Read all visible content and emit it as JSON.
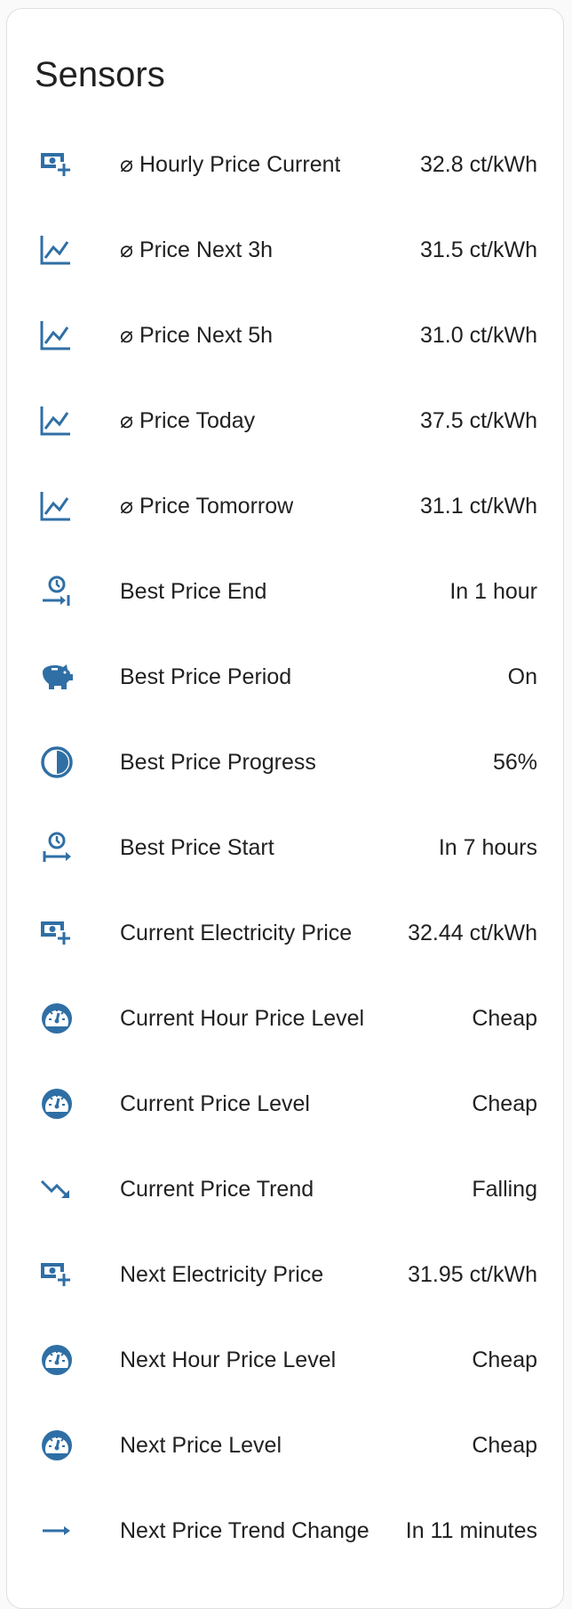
{
  "card": {
    "title": "Sensors"
  },
  "icon_color": "#2f6fa5",
  "rows": [
    {
      "icon": "cash-plus",
      "label": "⌀ Hourly Price Current",
      "value": "32.8 ct/kWh"
    },
    {
      "icon": "chart-line",
      "label": "⌀ Price Next 3h",
      "value": "31.5 ct/kWh"
    },
    {
      "icon": "chart-line",
      "label": "⌀ Price Next 5h",
      "value": "31.0 ct/kWh"
    },
    {
      "icon": "chart-line",
      "label": "⌀ Price Today",
      "value": "37.5 ct/kWh"
    },
    {
      "icon": "chart-line",
      "label": "⌀ Price Tomorrow",
      "value": "31.1 ct/kWh"
    },
    {
      "icon": "clock-end",
      "label": "Best Price End",
      "value": "In 1 hour"
    },
    {
      "icon": "piggy-bank",
      "label": "Best Price Period",
      "value": "On"
    },
    {
      "icon": "circle-half",
      "label": "Best Price Progress",
      "value": "56%"
    },
    {
      "icon": "clock-start",
      "label": "Best Price Start",
      "value": "In 7 hours"
    },
    {
      "icon": "cash-plus",
      "label": "Current Electricity Price",
      "value": "32.44 ct/kWh"
    },
    {
      "icon": "gauge",
      "label": "Current Hour Price Level",
      "value": "Cheap"
    },
    {
      "icon": "gauge",
      "label": "Current Price Level",
      "value": "Cheap"
    },
    {
      "icon": "trending-down",
      "label": "Current Price Trend",
      "value": "Falling"
    },
    {
      "icon": "cash-plus",
      "label": "Next Electricity Price",
      "value": "31.95 ct/kWh"
    },
    {
      "icon": "gauge",
      "label": "Next Hour Price Level",
      "value": "Cheap"
    },
    {
      "icon": "gauge",
      "label": "Next Price Level",
      "value": "Cheap"
    },
    {
      "icon": "arrow-right",
      "label": "Next Price Trend Change",
      "value": "In 11 minutes"
    }
  ]
}
